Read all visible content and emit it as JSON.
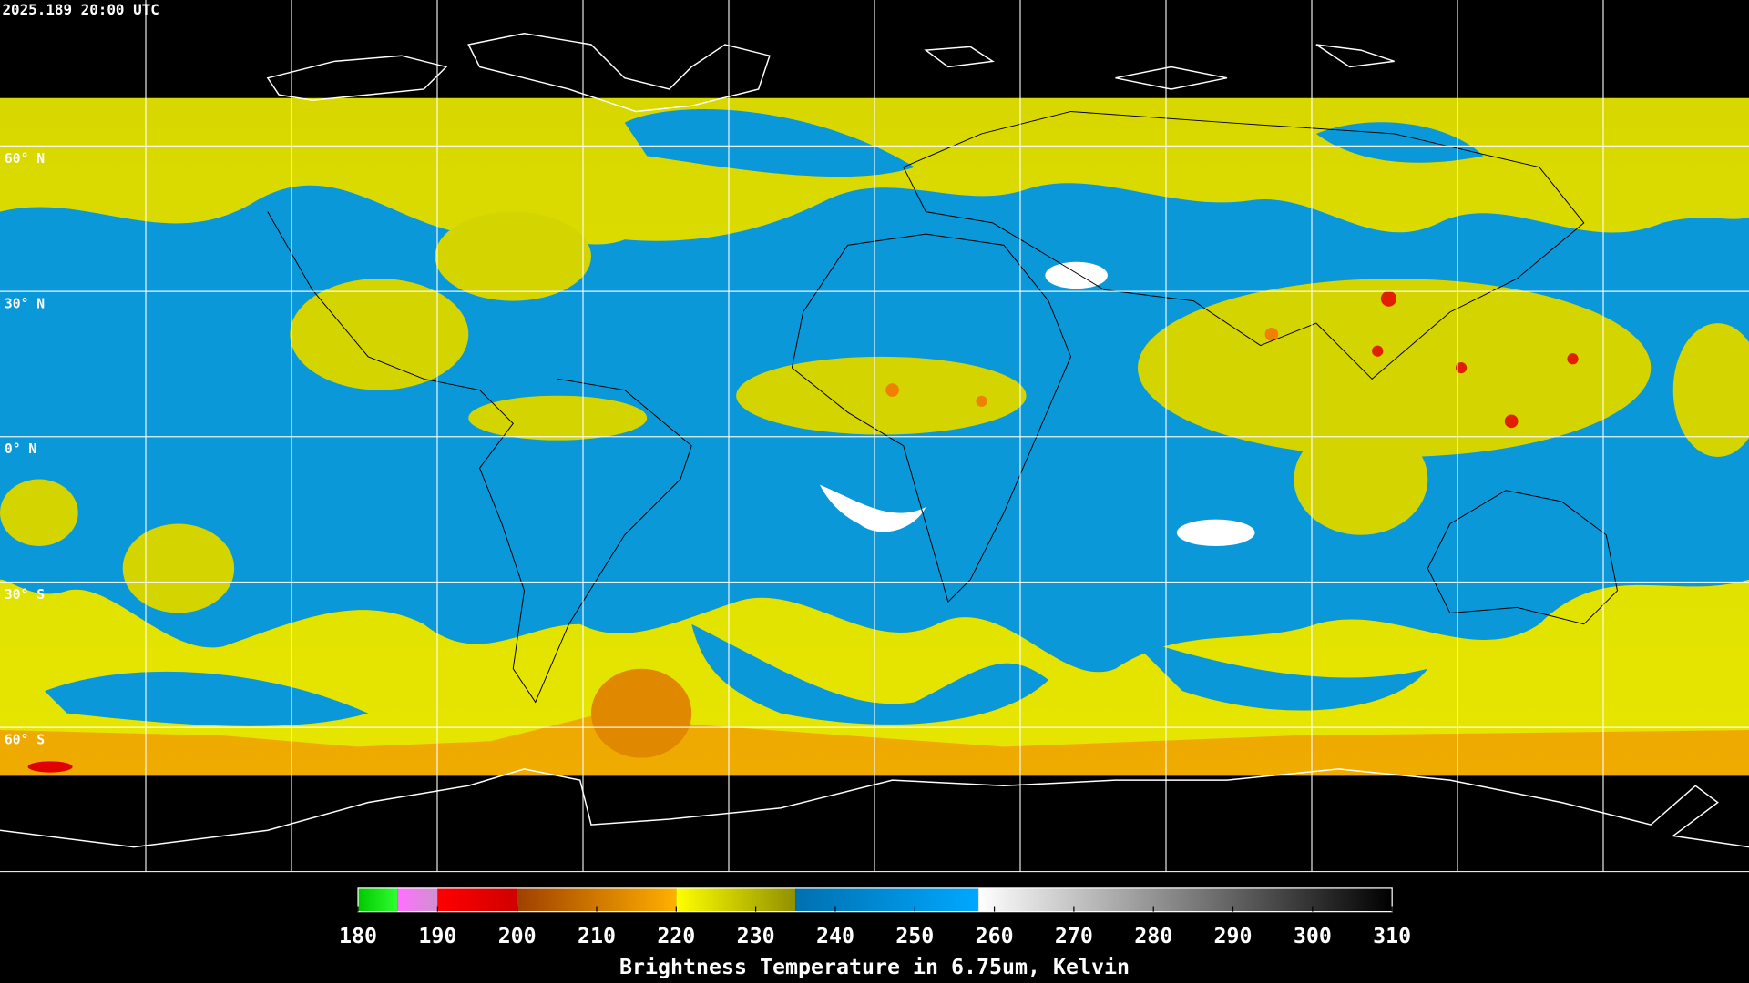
{
  "header": {
    "timestamp": "2025.189 20:00 UTC"
  },
  "map": {
    "lat_labels": [
      "60° N",
      "30° N",
      "0° N",
      "30° S",
      "60° S"
    ]
  },
  "colorbar": {
    "title": "Brightness Temperature in 6.75um, Kelvin",
    "lim": [
      180,
      310
    ],
    "ticks": [
      180,
      190,
      200,
      210,
      220,
      230,
      240,
      250,
      260,
      270,
      280,
      290,
      300,
      310
    ],
    "segments": [
      {
        "from": 180,
        "to": 185,
        "colors": [
          "#00c800",
          "#30ff30"
        ]
      },
      {
        "from": 185,
        "to": 190,
        "colors": [
          "#ff70ff",
          "#d090d0"
        ]
      },
      {
        "from": 190,
        "to": 200,
        "colors": [
          "#ff0000",
          "#d00000"
        ]
      },
      {
        "from": 200,
        "to": 220,
        "colors": [
          "#a04000",
          "#ffb000"
        ]
      },
      {
        "from": 220,
        "to": 235,
        "colors": [
          "#ffff00",
          "#909000"
        ]
      },
      {
        "from": 235,
        "to": 258,
        "colors": [
          "#0070b0",
          "#00a8ff"
        ]
      },
      {
        "from": 258,
        "to": 310,
        "colors": [
          "#ffffff",
          "#000000"
        ]
      }
    ]
  }
}
